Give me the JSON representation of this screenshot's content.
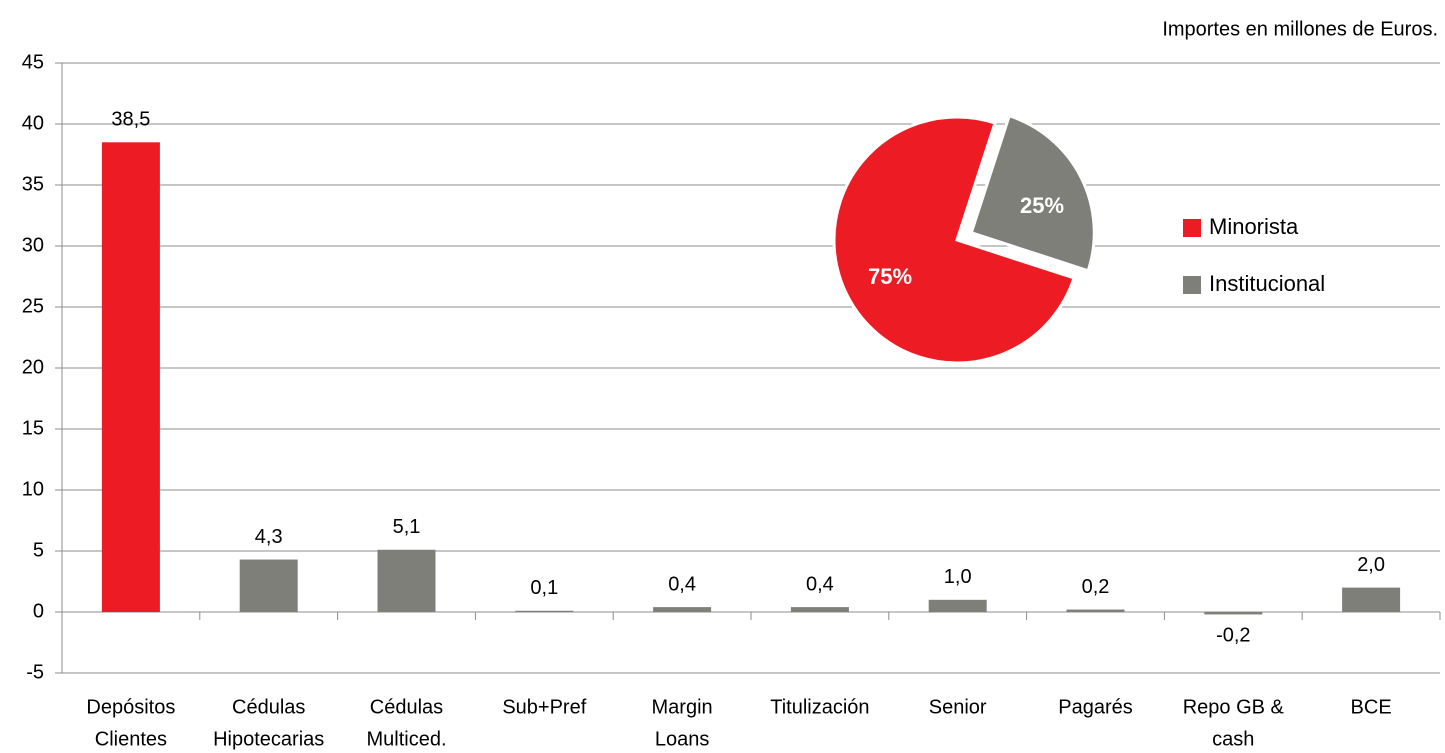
{
  "chart_data": [
    {
      "type": "bar",
      "subtitle": "Importes en millones de Euros.",
      "categories": [
        [
          "Depósitos",
          "Clientes"
        ],
        [
          "Cédulas",
          "Hipotecarias"
        ],
        [
          "Cédulas",
          "Multiced."
        ],
        [
          "Sub+Pref"
        ],
        [
          "Margin",
          "Loans"
        ],
        [
          "Titulización"
        ],
        [
          "Senior"
        ],
        [
          "Pagarés"
        ],
        [
          "Repo GB &",
          "cash"
        ],
        [
          "BCE"
        ]
      ],
      "values": [
        38.5,
        4.3,
        5.1,
        0.1,
        0.4,
        0.4,
        1.0,
        0.2,
        -0.2,
        2.0
      ],
      "value_labels": [
        "38,5",
        "4,3",
        "5,1",
        "0,1",
        "0,4",
        "0,4",
        "1,0",
        "0,2",
        "-0,2",
        "2,0"
      ],
      "colors": [
        "#ed1c24",
        "#7f7f7a",
        "#7f7f7a",
        "#7f7f7a",
        "#7f7f7a",
        "#7f7f7a",
        "#7f7f7a",
        "#7f7f7a",
        "#7f7f7a",
        "#7f7f7a"
      ],
      "ylim": [
        -5,
        45
      ],
      "yticks": [
        -5,
        0,
        5,
        10,
        15,
        20,
        25,
        30,
        35,
        40,
        45
      ],
      "grid": true
    },
    {
      "type": "pie",
      "categories": [
        "Minorista",
        "Institucional"
      ],
      "values": [
        75,
        25
      ],
      "value_labels": [
        "75%",
        "25%"
      ],
      "colors": [
        "#ed1c24",
        "#7f7f7a"
      ],
      "legend": "right"
    }
  ]
}
